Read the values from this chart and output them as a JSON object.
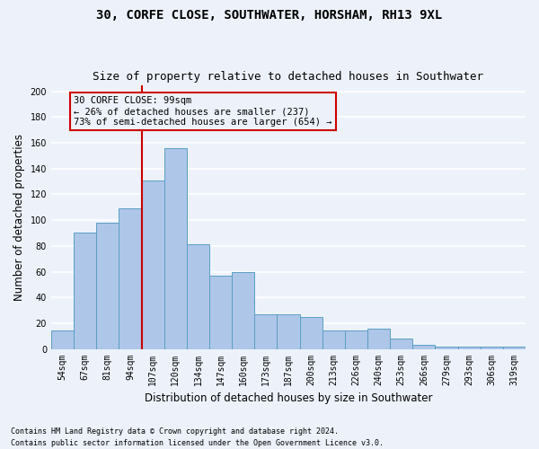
{
  "title1": "30, CORFE CLOSE, SOUTHWATER, HORSHAM, RH13 9XL",
  "title2": "Size of property relative to detached houses in Southwater",
  "xlabel": "Distribution of detached houses by size in Southwater",
  "ylabel": "Number of detached properties",
  "footnote1": "Contains HM Land Registry data © Crown copyright and database right 2024.",
  "footnote2": "Contains public sector information licensed under the Open Government Licence v3.0.",
  "categories": [
    "54sqm",
    "67sqm",
    "81sqm",
    "94sqm",
    "107sqm",
    "120sqm",
    "134sqm",
    "147sqm",
    "160sqm",
    "173sqm",
    "187sqm",
    "200sqm",
    "213sqm",
    "226sqm",
    "240sqm",
    "253sqm",
    "266sqm",
    "279sqm",
    "293sqm",
    "306sqm",
    "319sqm"
  ],
  "values": [
    14,
    90,
    98,
    109,
    131,
    156,
    81,
    57,
    60,
    27,
    27,
    25,
    14,
    14,
    16,
    8,
    3,
    2,
    2,
    2,
    2
  ],
  "bar_color": "#aec6e8",
  "bar_edge_color": "#5a9fc4",
  "vline_x": 3.5,
  "vline_color": "#cc0000",
  "annotation_box_text": "30 CORFE CLOSE: 99sqm\n← 26% of detached houses are smaller (237)\n73% of semi-detached houses are larger (654) →",
  "annotation_box_color": "#cc0000",
  "ylim": [
    0,
    205
  ],
  "yticks": [
    0,
    20,
    40,
    60,
    80,
    100,
    120,
    140,
    160,
    180,
    200
  ],
  "background_color": "#edf2fa",
  "grid_color": "#ffffff",
  "title_fontsize": 10,
  "subtitle_fontsize": 9,
  "axis_label_fontsize": 8.5,
  "tick_fontsize": 7,
  "ann_fontsize": 7.5
}
